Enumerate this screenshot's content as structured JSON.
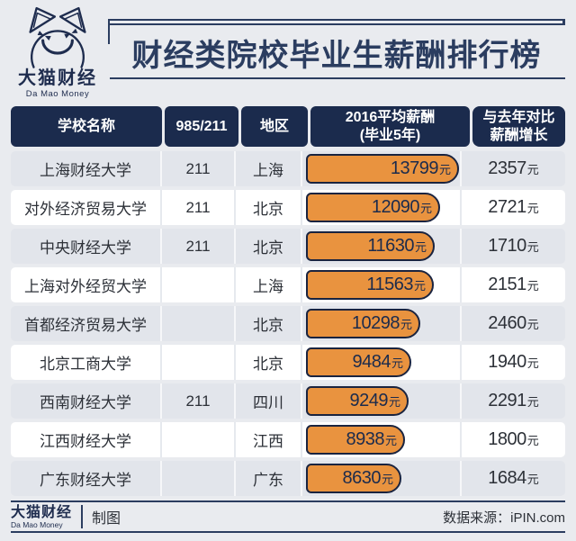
{
  "brand": {
    "name_cn": "大猫财经",
    "name_en": "Da Mao Money"
  },
  "title": "财经类院校毕业生薪酬排行榜",
  "colors": {
    "navy": "#1b2b4d",
    "orange": "#e9933f",
    "page_bg": "#e9ebef",
    "row_gray": "#e2e5eb",
    "row_white": "#ffffff",
    "bar_outline": "#1a2440"
  },
  "table": {
    "headers": [
      "学校名称",
      "985/211",
      "地区",
      "2016平均薪酬\n(毕业5年)",
      "与去年对比\n薪酬增长"
    ],
    "unit": "元",
    "rows": [
      {
        "school": "上海财经大学",
        "tag": "211",
        "region": "上海",
        "salary": 13799,
        "growth": 2357
      },
      {
        "school": "对外经济贸易大学",
        "tag": "211",
        "region": "北京",
        "salary": 12090,
        "growth": 2721
      },
      {
        "school": "中央财经大学",
        "tag": "211",
        "region": "北京",
        "salary": 11630,
        "growth": 1710
      },
      {
        "school": "上海对外经贸大学",
        "tag": "",
        "region": "上海",
        "salary": 11563,
        "growth": 2151
      },
      {
        "school": "首都经济贸易大学",
        "tag": "",
        "region": "北京",
        "salary": 10298,
        "growth": 2460
      },
      {
        "school": "北京工商大学",
        "tag": "",
        "region": "北京",
        "salary": 9484,
        "growth": 1940
      },
      {
        "school": "西南财经大学",
        "tag": "211",
        "region": "四川",
        "salary": 9249,
        "growth": 2291
      },
      {
        "school": "江西财经大学",
        "tag": "",
        "region": "江西",
        "salary": 8938,
        "growth": 1800
      },
      {
        "school": "广东财经大学",
        "tag": "",
        "region": "广东",
        "salary": 8630,
        "growth": 1684
      }
    ]
  },
  "footer": {
    "brand_cn": "大猫财经",
    "brand_en": "Da Mao Money",
    "credit": "制图",
    "source": "数据来源：iPIN.com"
  },
  "chart_data": {
    "type": "bar",
    "title": "财经类院校毕业生薪酬排行榜",
    "categories": [
      "上海财经大学",
      "对外经济贸易大学",
      "中央财经大学",
      "上海对外经贸大学",
      "首都经济贸易大学",
      "北京工商大学",
      "西南财经大学",
      "江西财经大学",
      "广东财经大学"
    ],
    "series": [
      {
        "name": "2016平均薪酬(毕业5年)",
        "values": [
          13799,
          12090,
          11630,
          11563,
          10298,
          9484,
          9249,
          8938,
          8630
        ]
      },
      {
        "name": "与去年对比薪酬增长",
        "values": [
          2357,
          2721,
          1710,
          2151,
          2460,
          1940,
          2291,
          1800,
          1684
        ]
      }
    ],
    "tags_985_211": [
      "211",
      "211",
      "211",
      "",
      "",
      "",
      "211",
      "",
      ""
    ],
    "regions": [
      "上海",
      "北京",
      "北京",
      "上海",
      "北京",
      "北京",
      "四川",
      "江西",
      "广东"
    ],
    "unit": "元",
    "xlim": [
      0,
      13799
    ],
    "orientation": "horizontal",
    "bar_color": "#e9933f",
    "source": "iPIN.com"
  }
}
